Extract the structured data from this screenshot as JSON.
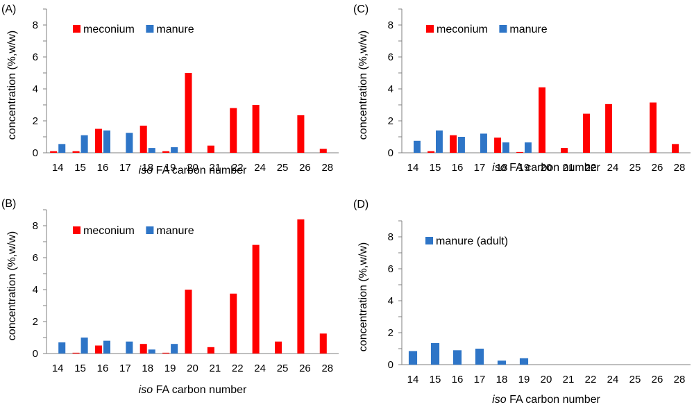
{
  "chart_data": [
    {
      "type": "bar",
      "panel_label": "(A)",
      "categories": [
        "14",
        "15",
        "16",
        "17",
        "18",
        "19",
        "20",
        "21",
        "22",
        "24",
        "25",
        "26",
        "28"
      ],
      "series": [
        {
          "name": "meconium",
          "color": "#ff0000",
          "values": [
            0.1,
            0.1,
            1.5,
            0,
            1.7,
            0.1,
            5.0,
            0.45,
            2.8,
            3.0,
            0,
            2.35,
            0.25
          ]
        },
        {
          "name": "manure",
          "color": "#2e75c7",
          "values": [
            0.55,
            1.1,
            1.4,
            1.25,
            0.3,
            0.35,
            0,
            0,
            0,
            0,
            0,
            0,
            0
          ]
        }
      ],
      "xlabel_italic": "iso",
      "xlabel_rest": " FA carbon number",
      "ylabel": "concentration (%,w/w)",
      "yticks": [
        "0",
        "2",
        "4",
        "6",
        "8"
      ],
      "ylim": [
        0,
        9
      ],
      "legend_position": "top-left"
    },
    {
      "type": "bar",
      "panel_label": "(B)",
      "categories": [
        "14",
        "15",
        "16",
        "17",
        "18",
        "19",
        "20",
        "21",
        "22",
        "24",
        "25",
        "26",
        "28"
      ],
      "series": [
        {
          "name": "meconium",
          "color": "#ff0000",
          "values": [
            0,
            0.05,
            0.5,
            0,
            0.6,
            0.05,
            4.0,
            0.4,
            3.75,
            6.8,
            0.75,
            8.4,
            1.25
          ]
        },
        {
          "name": "manure",
          "color": "#2e75c7",
          "values": [
            0.7,
            1.0,
            0.8,
            0.75,
            0.25,
            0.6,
            0,
            0,
            0,
            0,
            0,
            0,
            0
          ]
        }
      ],
      "xlabel_italic": "iso",
      "xlabel_rest": " FA carbon number",
      "ylabel": "concentration (%,w/w)",
      "yticks": [
        "0",
        "2",
        "4",
        "6",
        "8"
      ],
      "ylim": [
        0,
        9
      ],
      "legend_position": "top-left"
    },
    {
      "type": "bar",
      "panel_label": "(C)",
      "categories": [
        "14",
        "15",
        "16",
        "17",
        "18",
        "19",
        "20",
        "21",
        "22",
        "24",
        "25",
        "26",
        "28"
      ],
      "series": [
        {
          "name": "meconium",
          "color": "#ff0000",
          "values": [
            0,
            0.1,
            1.1,
            0,
            0.95,
            0.05,
            4.1,
            0.3,
            2.45,
            3.05,
            0,
            3.15,
            0.55
          ]
        },
        {
          "name": "manure",
          "color": "#2e75c7",
          "values": [
            0.75,
            1.4,
            1.0,
            1.2,
            0.65,
            0.65,
            0,
            0,
            0,
            0,
            0,
            0,
            0
          ]
        }
      ],
      "xlabel_italic": "iso",
      "xlabel_rest": " FA carbon number",
      "ylabel": "concentration (%,w/w)",
      "yticks": [
        "0",
        "2",
        "4",
        "6",
        "8"
      ],
      "ylim": [
        0,
        9
      ],
      "legend_position": "top-left"
    },
    {
      "type": "bar",
      "panel_label": "(D)",
      "categories": [
        "14",
        "15",
        "16",
        "17",
        "18",
        "19",
        "20",
        "21",
        "22",
        "24",
        "25",
        "26",
        "28"
      ],
      "series": [
        {
          "name": "manure (adult)",
          "color": "#2e75c7",
          "values": [
            0.85,
            1.35,
            0.9,
            1.0,
            0.25,
            0.4,
            0,
            0,
            0,
            0,
            0,
            0,
            0
          ]
        }
      ],
      "xlabel_italic": "iso",
      "xlabel_rest": " FA carbon number",
      "ylabel": "concentration (%,w/w)",
      "yticks": [
        "0",
        "2",
        "4",
        "6",
        "8"
      ],
      "ylim": [
        0,
        9
      ],
      "legend_position": "top-left"
    }
  ]
}
